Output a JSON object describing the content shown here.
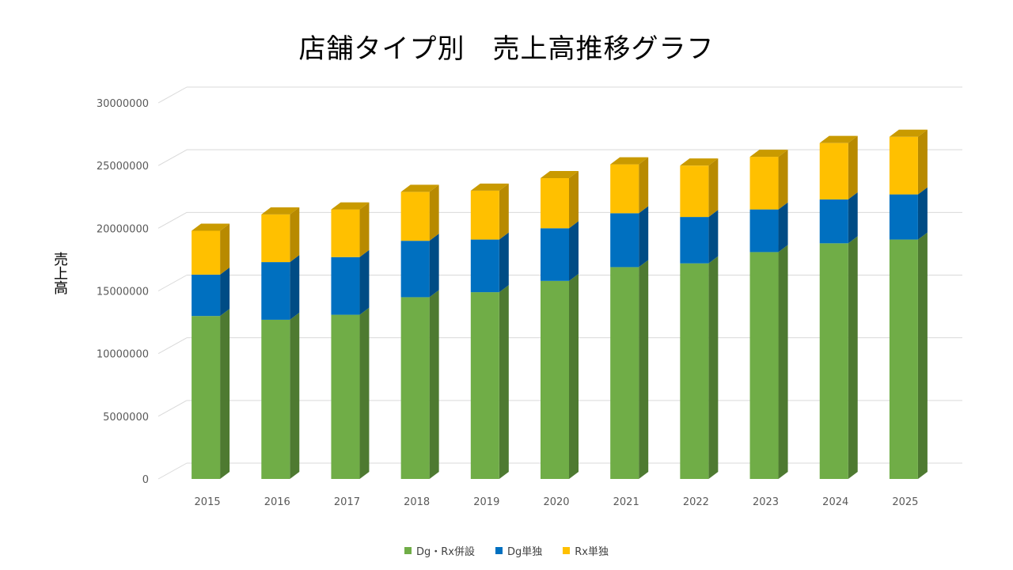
{
  "chart_data": {
    "type": "bar",
    "subtype": "stacked-3d-column",
    "title": "店舗タイプ別　売上高推移グラフ",
    "xlabel": "",
    "ylabel": "売上高",
    "ylim": [
      0,
      30000000
    ],
    "yticks": [
      "0",
      "5000000",
      "10000000",
      "15000000",
      "20000000",
      "25000000",
      "30000000"
    ],
    "categories": [
      "2015",
      "2016",
      "2017",
      "2018",
      "2019",
      "2020",
      "2021",
      "2022",
      "2023",
      "2024",
      "2025"
    ],
    "series": [
      {
        "name": "Dg・Rx併設",
        "color": "#70AD47",
        "side_color": "#4E7A31",
        "top_color": "#5E9A3A",
        "values": [
          13000000,
          12700000,
          13100000,
          14500000,
          14900000,
          15800000,
          16900000,
          17200000,
          18100000,
          18800000,
          19100000
        ]
      },
      {
        "name": "Dg単独",
        "color": "#0070C0",
        "side_color": "#004C85",
        "top_color": "#005DA0",
        "values": [
          3300000,
          4600000,
          4600000,
          4500000,
          4200000,
          4200000,
          4300000,
          3700000,
          3400000,
          3500000,
          3600000
        ]
      },
      {
        "name": "Rx単独",
        "color": "#FFC000",
        "side_color": "#B88A00",
        "top_color": "#C99A00",
        "values": [
          3500000,
          3800000,
          3800000,
          3900000,
          3900000,
          4000000,
          3900000,
          4100000,
          4200000,
          4500000,
          4600000
        ]
      }
    ],
    "grid": true,
    "legend_position": "bottom"
  }
}
